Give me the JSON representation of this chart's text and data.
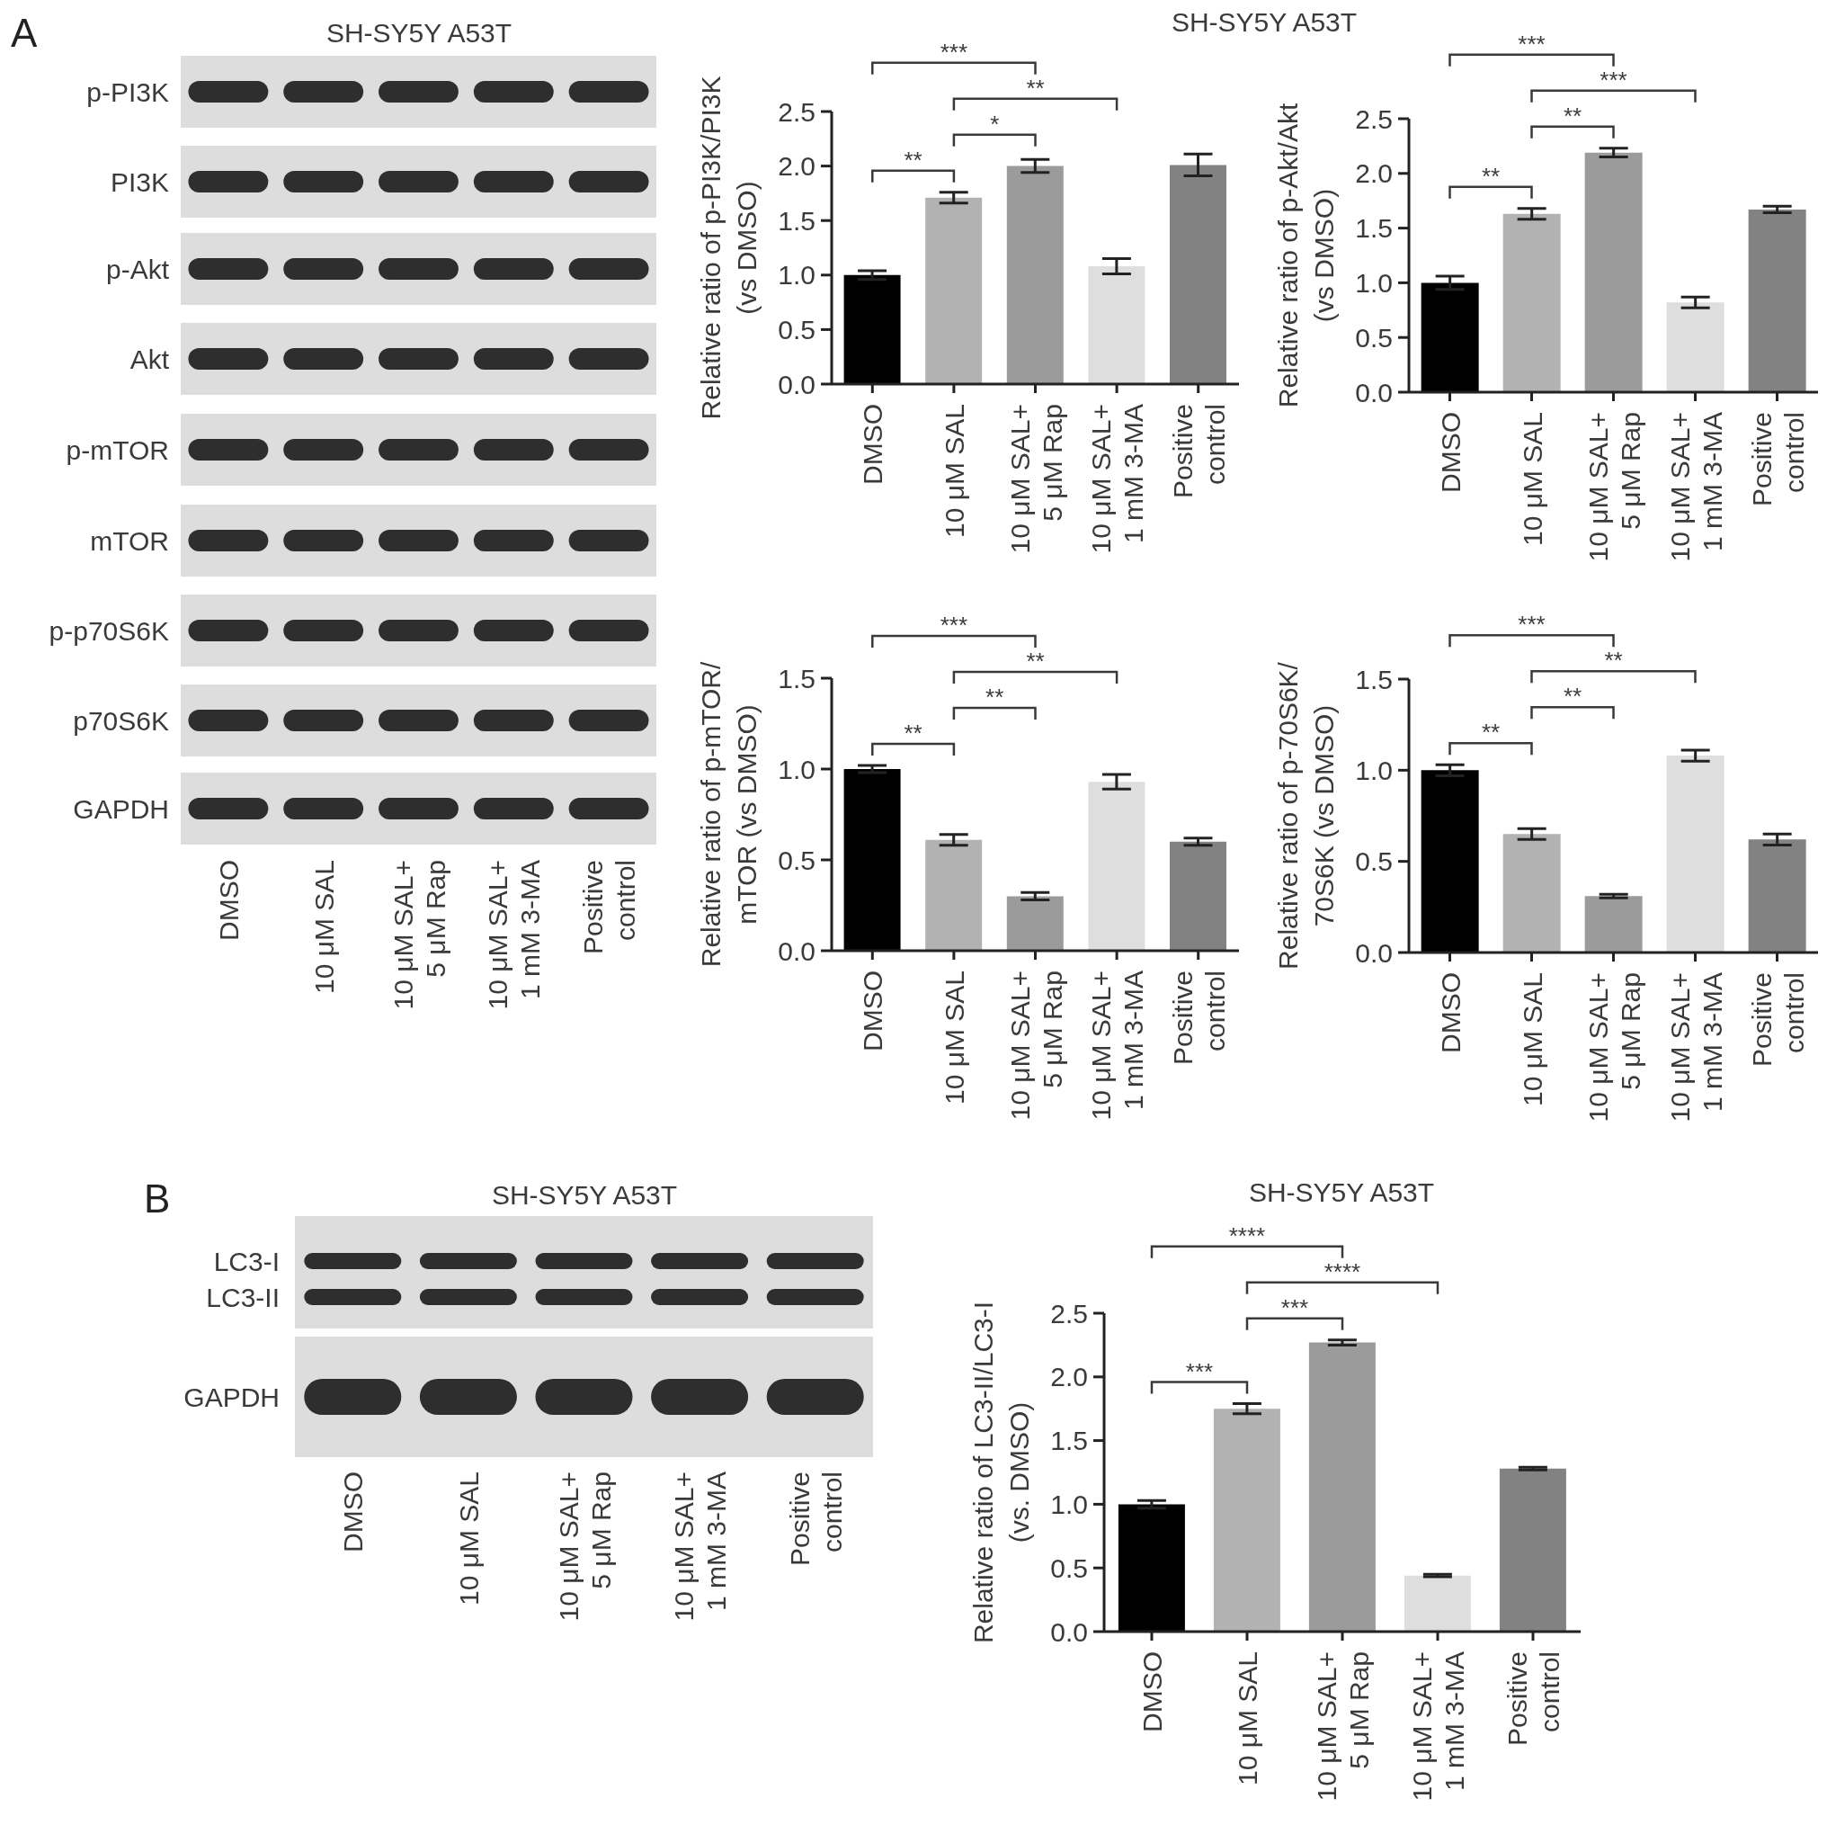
{
  "chart_data": [
    {
      "type": "other",
      "title": "SH-SY5Y A53T",
      "categories": [
        "DMSO",
        "10 μM SAL",
        "10 μM SAL+\n5 μM Rap",
        "10 μM SAL+\n1 mM 3-MA",
        "Positive\ncontrol"
      ],
      "y_categories": [
        "p-PI3K",
        "PI3K",
        "p-Akt",
        "Akt",
        "p-mTOR",
        "mTOR",
        "p-p70S6K",
        "p70S6K",
        "GAPDH"
      ],
      "annotations": [
        "A"
      ]
    },
    {
      "type": "bar",
      "title": "SH-SY5Y A53T",
      "ylabel": "Relative ratio of p-PI3K/PI3K\n(vs DMSO)",
      "categories": [
        "DMSO",
        "10 μM SAL",
        "10 μM SAL+\n5 μM Rap",
        "10 μM SAL+\n1 mM 3-MA",
        "Positive\ncontrol"
      ],
      "values": [
        1.0,
        1.71,
        2.0,
        1.08,
        2.01
      ],
      "errors": [
        0.04,
        0.05,
        0.06,
        0.07,
        0.1
      ],
      "colors": [
        "#000000",
        "#b2b2b2",
        "#9b9b9b",
        "#dedede",
        "#828282"
      ],
      "ylim": [
        0,
        2.5
      ],
      "yticks": [
        {
          "value": 0,
          "label": "0.0"
        },
        0.5,
        {
          "value": 1,
          "label": "1.0"
        },
        1.5,
        {
          "value": 2,
          "label": "2.0"
        },
        2.5
      ],
      "annotations": [
        "***",
        "**",
        "*",
        "**"
      ]
    },
    {
      "type": "bar",
      "ylabel": "Relative ratio of p-Akt/Akt\n(vs DMSO)",
      "categories": [
        "DMSO",
        "10 μM SAL",
        "10 μM SAL+\n5 μM Rap",
        "10 μM SAL+\n1 mM 3-MA",
        "Positive\ncontrol"
      ],
      "values": [
        1.0,
        1.63,
        2.19,
        0.82,
        1.67
      ],
      "errors": [
        0.06,
        0.05,
        0.04,
        0.05,
        0.03
      ],
      "colors": [
        "#000000",
        "#b2b2b2",
        "#9b9b9b",
        "#dedede",
        "#828282"
      ],
      "ylim": [
        0,
        2.5
      ],
      "yticks": [
        {
          "value": 0,
          "label": "0.0"
        },
        0.5,
        {
          "value": 1,
          "label": "1.0"
        },
        1.5,
        {
          "value": 2,
          "label": "2.0"
        },
        2.5
      ],
      "annotations": [
        "***",
        "***",
        "**",
        "**"
      ]
    },
    {
      "type": "bar",
      "ylabel": "Relative ratio of p-mTOR/\nmTOR (vs DMSO)",
      "categories": [
        "DMSO",
        "10 μM SAL",
        "10 μM SAL+\n5 μM Rap",
        "10 μM SAL+\n1 mM 3-MA",
        "Positive\ncontrol"
      ],
      "values": [
        1.0,
        0.61,
        0.3,
        0.93,
        0.6
      ],
      "errors": [
        0.02,
        0.03,
        0.02,
        0.04,
        0.02
      ],
      "colors": [
        "#000000",
        "#b2b2b2",
        "#9b9b9b",
        "#dedede",
        "#828282"
      ],
      "ylim": [
        0,
        1.5
      ],
      "yticks": [
        {
          "value": 0,
          "label": "0.0"
        },
        0.5,
        {
          "value": 1,
          "label": "1.0"
        },
        1.5
      ],
      "annotations": [
        "***",
        "**",
        "**",
        "**"
      ]
    },
    {
      "type": "bar",
      "ylabel": "Relative ratio of p-70S6K/\n70S6K (vs DMSO)",
      "categories": [
        "DMSO",
        "10 μM SAL",
        "10 μM SAL+\n5 μM Rap",
        "10 μM SAL+\n1 mM 3-MA",
        "Positive\ncontrol"
      ],
      "values": [
        1.0,
        0.65,
        0.31,
        1.08,
        0.62
      ],
      "errors": [
        0.03,
        0.03,
        0.01,
        0.03,
        0.03
      ],
      "colors": [
        "#000000",
        "#b2b2b2",
        "#9b9b9b",
        "#dedede",
        "#828282"
      ],
      "ylim": [
        0,
        1.5
      ],
      "yticks": [
        {
          "value": 0,
          "label": "0.0"
        },
        0.5,
        {
          "value": 1,
          "label": "1.0"
        },
        1.5
      ],
      "annotations": [
        "***",
        "**",
        "**",
        "**"
      ]
    },
    {
      "type": "other",
      "title": "SH-SY5Y A53T",
      "categories": [
        "DMSO",
        "10 μM SAL",
        "10 μM SAL+\n5 μM Rap",
        "10 μM SAL+\n1 mM 3-MA",
        "Positive\ncontrol"
      ],
      "y_categories": [
        "LC3-I",
        "LC3-II",
        "GAPDH"
      ],
      "annotations": [
        "B"
      ]
    },
    {
      "type": "bar",
      "title": "SH-SY5Y A53T",
      "ylabel": "Relative ratio of LC3-II/LC3-I\n(vs. DMSO)",
      "categories": [
        "DMSO",
        "10 μM SAL",
        "10 μM SAL+\n5 μM Rap",
        "10 μM SAL+\n1 mM 3-MA",
        "Positive\ncontrol"
      ],
      "values": [
        1.0,
        1.75,
        2.27,
        0.44,
        1.28
      ],
      "errors": [
        0.03,
        0.04,
        0.02,
        0.01,
        0.01
      ],
      "colors": [
        "#000000",
        "#b2b2b2",
        "#9b9b9b",
        "#dedede",
        "#828282"
      ],
      "ylim": [
        0,
        2.5
      ],
      "yticks": [
        {
          "value": 0,
          "label": "0.0"
        },
        0.5,
        {
          "value": 1,
          "label": "1.0"
        },
        1.5,
        {
          "value": 2,
          "label": "2.0"
        },
        2.5
      ],
      "annotations": [
        "****",
        "****",
        "***",
        "***"
      ]
    }
  ]
}
